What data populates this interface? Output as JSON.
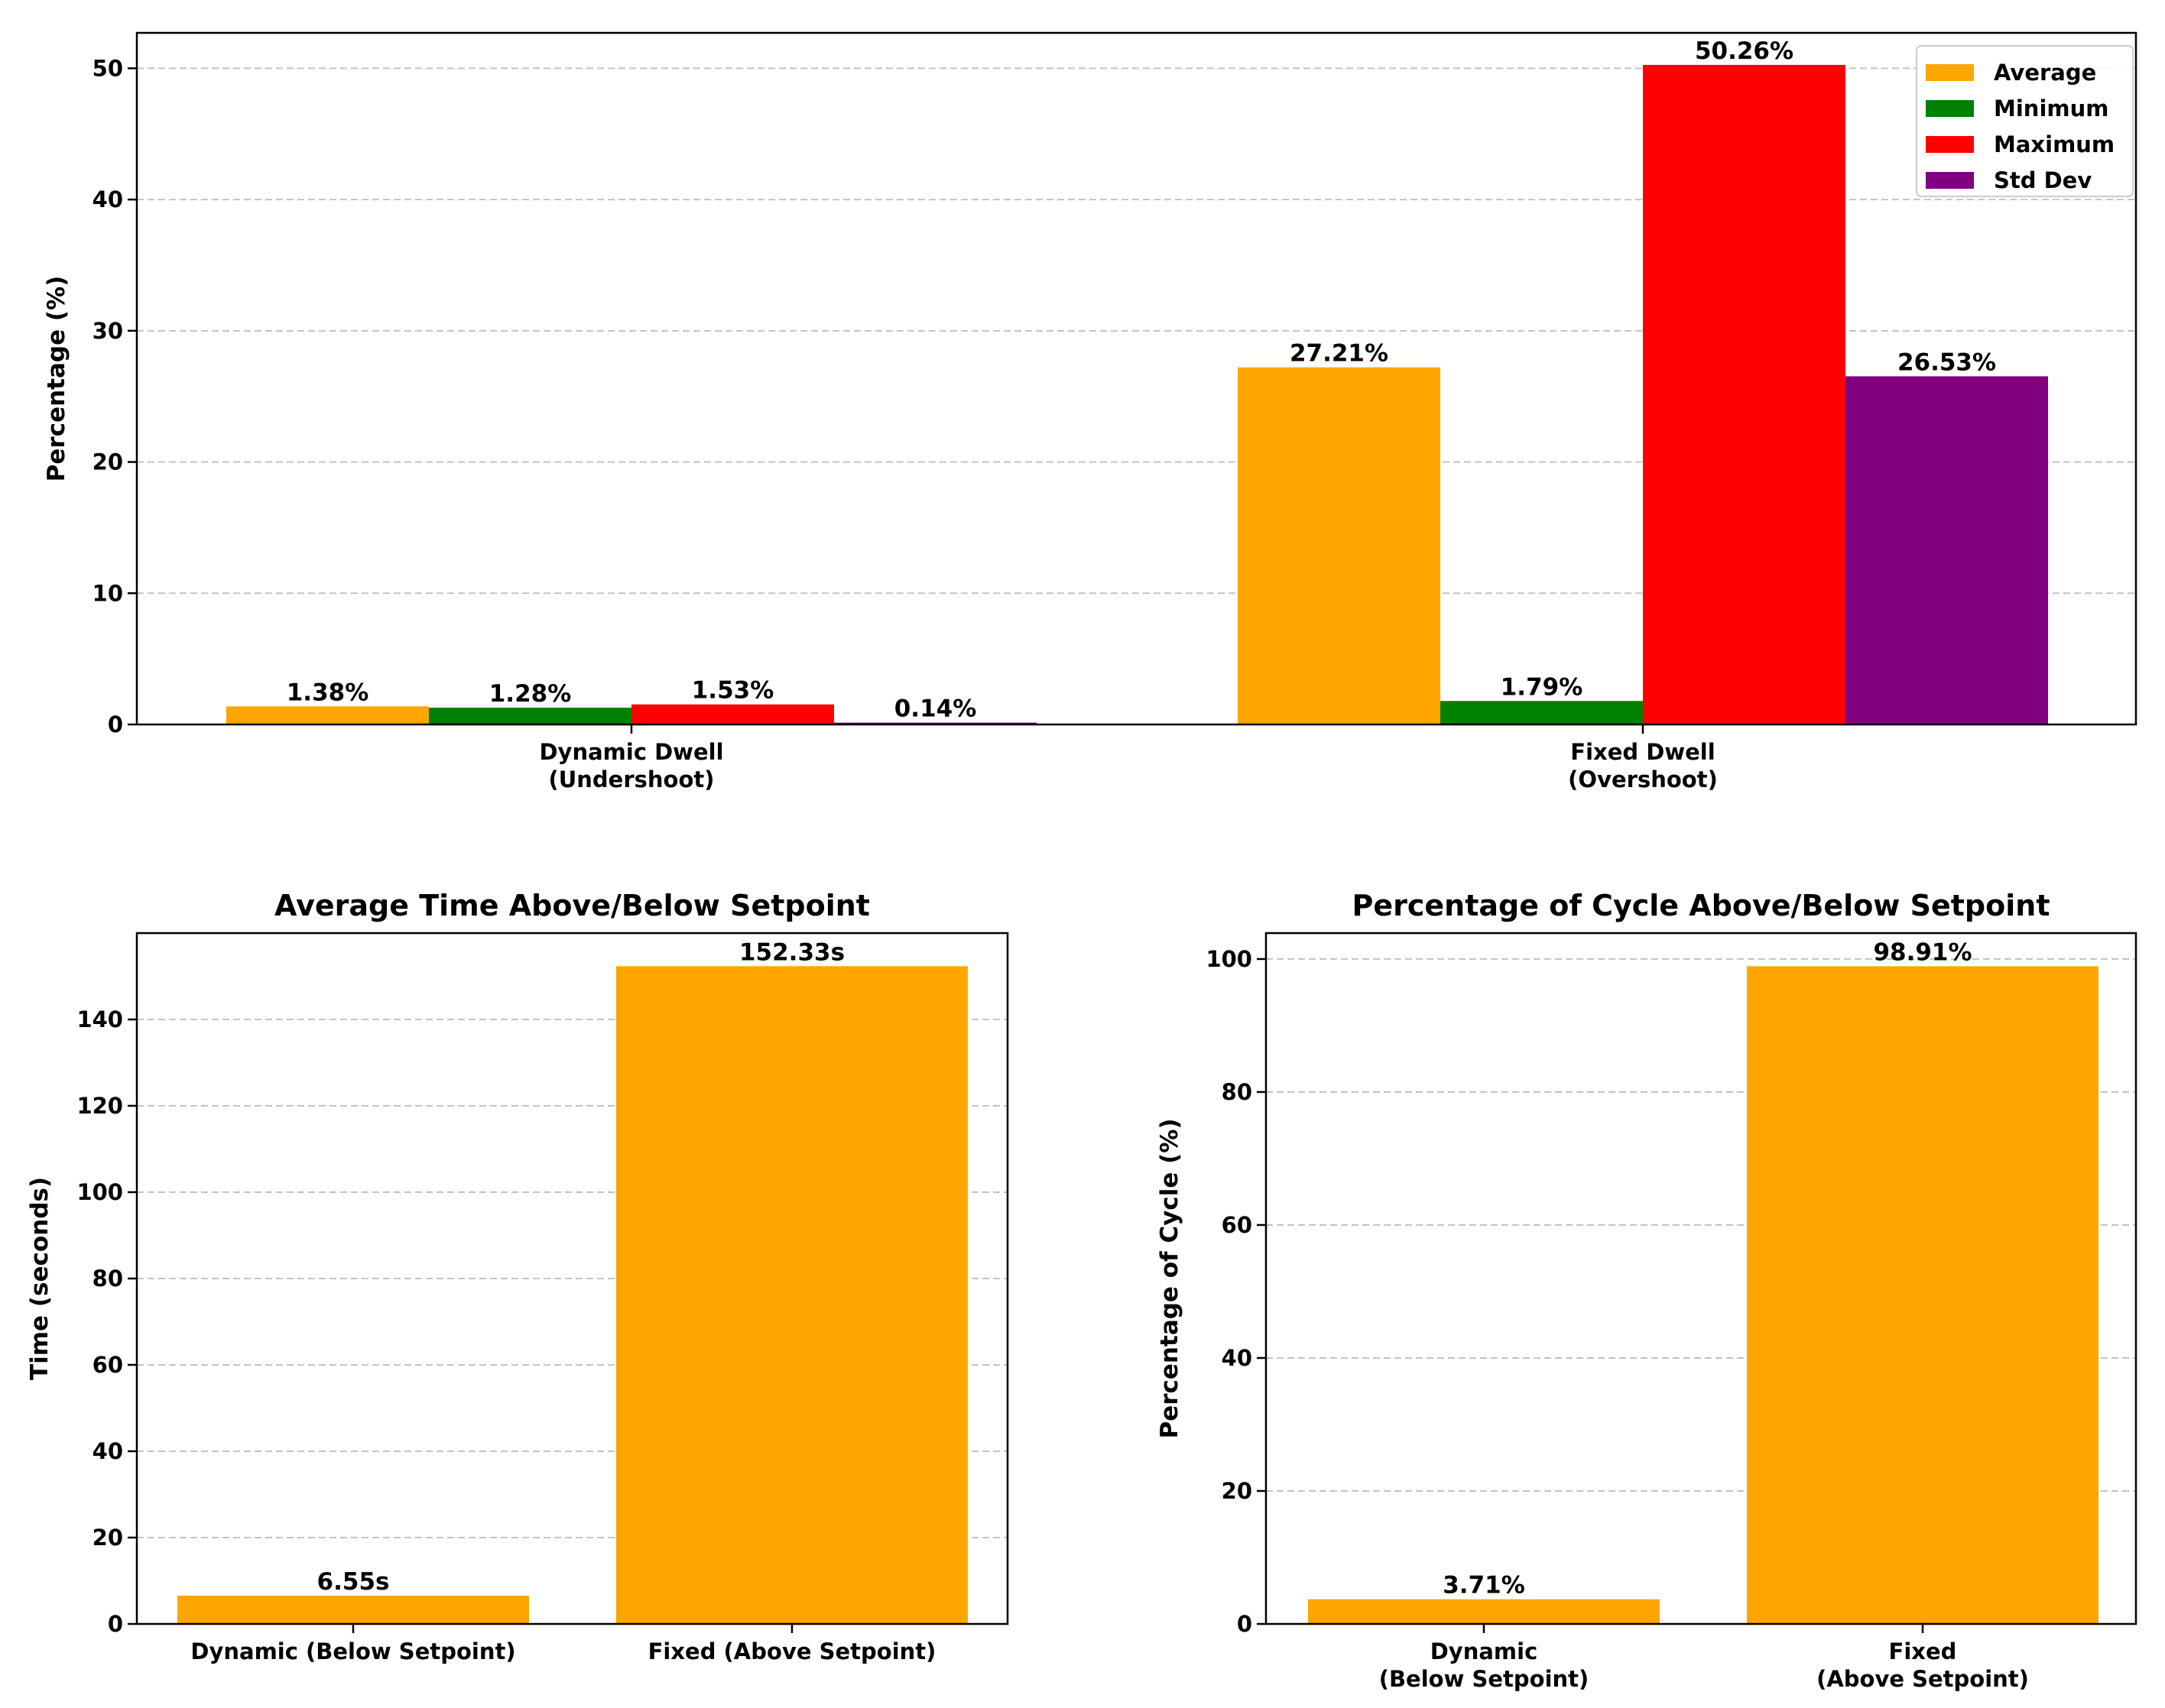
{
  "chart_data": [
    {
      "type": "bar",
      "title": "",
      "xlabel": "",
      "ylabel": "Percentage (%)",
      "ylim": [
        0,
        52.7
      ],
      "yticks": [
        0,
        10,
        20,
        30,
        40,
        50
      ],
      "grid": "horizontal dashed",
      "legend_position": "top-right",
      "categories": [
        [
          "Dynamic Dwell",
          "(Undershoot)"
        ],
        [
          "Fixed Dwell",
          "(Overshoot)"
        ]
      ],
      "series": [
        {
          "name": "Average",
          "color": "#FFA500",
          "values": [
            1.38,
            27.21
          ],
          "labels": [
            "1.38%",
            "27.21%"
          ]
        },
        {
          "name": "Minimum",
          "color": "#008000",
          "values": [
            1.28,
            1.79
          ],
          "labels": [
            "1.28%",
            "1.79%"
          ]
        },
        {
          "name": "Maximum",
          "color": "#FF0000",
          "values": [
            1.53,
            50.26
          ],
          "labels": [
            "1.53%",
            "50.26%"
          ]
        },
        {
          "name": "Std Dev",
          "color": "#800080",
          "values": [
            0.14,
            26.53
          ],
          "labels": [
            "0.14%",
            "26.53%"
          ]
        }
      ]
    },
    {
      "type": "bar",
      "title": "Average Time Above/Below Setpoint",
      "xlabel": "",
      "ylabel": "Time (seconds)",
      "ylim": [
        0,
        160
      ],
      "yticks": [
        0,
        20,
        40,
        60,
        80,
        100,
        120,
        140
      ],
      "grid": "horizontal dashed",
      "categories": [
        [
          "Dynamic (Below Setpoint)"
        ],
        [
          "Fixed (Above Setpoint)"
        ]
      ],
      "series": [
        {
          "color": "#FFA500",
          "values": [
            6.55,
            152.33
          ],
          "labels": [
            "6.55s",
            "152.33s"
          ]
        }
      ]
    },
    {
      "type": "bar",
      "title": "Percentage of Cycle Above/Below Setpoint",
      "xlabel": "",
      "ylabel": "Percentage of Cycle (%)",
      "ylim": [
        0,
        103.9
      ],
      "yticks": [
        0,
        20,
        40,
        60,
        80,
        100
      ],
      "grid": "horizontal dashed",
      "categories": [
        [
          "Dynamic",
          "(Below Setpoint)"
        ],
        [
          "Fixed",
          "(Above Setpoint)"
        ]
      ],
      "series": [
        {
          "color": "#FFA500",
          "values": [
            3.71,
            98.91
          ],
          "labels": [
            "3.71%",
            "98.91%"
          ]
        }
      ]
    }
  ]
}
